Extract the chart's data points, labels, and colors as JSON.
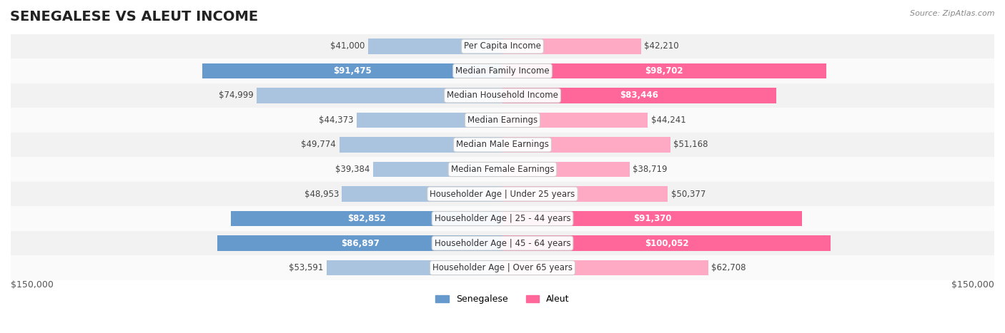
{
  "title": "SENEGALESE VS ALEUT INCOME",
  "source": "Source: ZipAtlas.com",
  "categories": [
    "Per Capita Income",
    "Median Family Income",
    "Median Household Income",
    "Median Earnings",
    "Median Male Earnings",
    "Median Female Earnings",
    "Householder Age | Under 25 years",
    "Householder Age | 25 - 44 years",
    "Householder Age | 45 - 64 years",
    "Householder Age | Over 65 years"
  ],
  "senegalese_values": [
    41000,
    91475,
    74999,
    44373,
    49774,
    39384,
    48953,
    82852,
    86897,
    53591
  ],
  "aleut_values": [
    42210,
    98702,
    83446,
    44241,
    51168,
    38719,
    50377,
    91370,
    100052,
    62708
  ],
  "senegalese_labels": [
    "$41,000",
    "$91,475",
    "$74,999",
    "$44,373",
    "$49,774",
    "$39,384",
    "$48,953",
    "$82,852",
    "$86,897",
    "$53,591"
  ],
  "aleut_labels": [
    "$42,210",
    "$98,702",
    "$83,446",
    "$44,241",
    "$51,168",
    "$38,719",
    "$50,377",
    "$91,370",
    "$100,052",
    "$62,708"
  ],
  "senegalese_color_strong": "#6699cc",
  "senegalese_color_light": "#aac4e0",
  "aleut_color_strong": "#ff6699",
  "aleut_color_light": "#ffaac4",
  "row_bg_color": "#f0f0f0",
  "row_alt_bg_color": "#ffffff",
  "max_value": 150000,
  "legend_senegalese": "Senegalese",
  "legend_aleut": "Aleut",
  "title_fontsize": 14,
  "label_fontsize": 8.5,
  "category_fontsize": 8.5,
  "axis_label": "$150,000",
  "strong_threshold": 75000
}
